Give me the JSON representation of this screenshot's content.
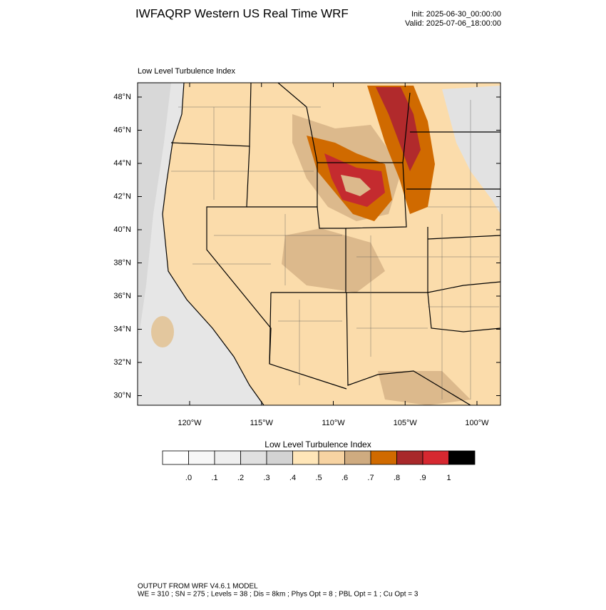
{
  "header": {
    "title": "IWFAQRP Western US Real Time WRF",
    "init": "Init: 2025-06-30_00:00:00",
    "valid": "Valid: 2025-07-06_18:00:00"
  },
  "map": {
    "title": "Low Level Turbulence Index",
    "lat_labels": [
      "48°N",
      "46°N",
      "44°N",
      "42°N",
      "40°N",
      "38°N",
      "36°N",
      "34°N",
      "32°N",
      "30°N"
    ],
    "lon_labels": [
      "120°W",
      "115°W",
      "110°W",
      "105°W",
      "100°W"
    ]
  },
  "colorbar": {
    "title": "Low Level Turbulence Index",
    "colors": [
      "#ffffff",
      "#f7f7f7",
      "#efefef",
      "#e0e0e0",
      "#d3d3d3",
      "#ffe6b8",
      "#f7d3a2",
      "#cfab80",
      "#d06a00",
      "#a8282a",
      "#d62830",
      "#000000"
    ],
    "labels": [
      ".0",
      ".1",
      ".2",
      ".3",
      ".4",
      ".5",
      ".6",
      ".7",
      ".8",
      ".9",
      "1"
    ]
  },
  "footer": {
    "line1": "OUTPUT FROM WRF V4.6.1 MODEL",
    "line2": "WE = 310 ; SN = 275 ; Levels = 38 ; Dis = 8km ; Phys Opt = 8 ; PBL Opt = 1 ; Cu Opt = 3"
  }
}
